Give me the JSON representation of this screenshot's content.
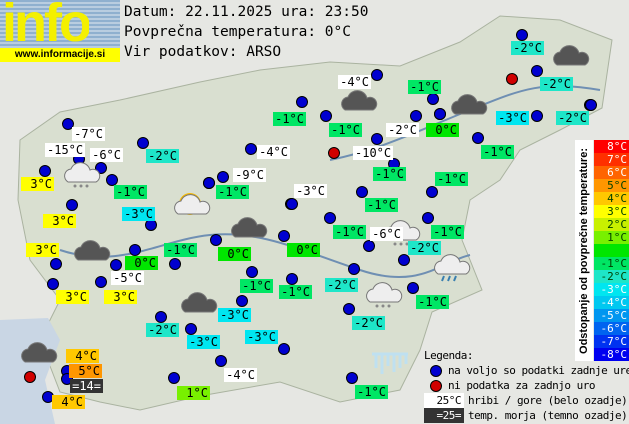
{
  "logo": {
    "word": "info",
    "url": "www.informacije.si"
  },
  "header": {
    "date_line": "Datum: 22.11.2025 ura: 23:50",
    "avg_line": "Povprečna temperatura: 0°C",
    "source_line": "Vir podatkov: ARSO"
  },
  "colors": {
    "mountain": "#ffffff",
    "sea": "#333333",
    "t8": "#ff0000",
    "t7": "#ff3000",
    "t6": "#ff6400",
    "t5": "#ff9600",
    "t4": "#ffc800",
    "t3": "#ffff00",
    "t2": "#c8f000",
    "t1": "#78f000",
    "t0": "#00e600",
    "t-1": "#00e664",
    "t-2": "#1ee6c8",
    "t-3": "#00e6f0",
    "t-4": "#00c8f0",
    "t-5": "#0096f0",
    "t-6": "#0064f0",
    "t-7": "#0032f0",
    "t-8": "#0000f0"
  },
  "stations": [
    {
      "t": "-2°C",
      "d": -2
    },
    {
      "t": "-4°C",
      "d": -4,
      "m": 1
    },
    {
      "t": "-1°C",
      "d": -1
    },
    {
      "t": "-2°C",
      "d": -2
    },
    {
      "t": "-1°C",
      "d": -1
    },
    {
      "t": "-1°C",
      "d": -1
    },
    {
      "t": "-2°C",
      "d": -2,
      "m": 1
    },
    {
      "t": "0°C",
      "d": 0
    },
    {
      "t": "-3°C",
      "d": -3
    },
    {
      "t": "-2°C",
      "d": -2
    },
    {
      "t": "-7°C",
      "d": -7,
      "m": 1
    },
    {
      "t": "-15°C",
      "d": -15,
      "m": 1
    },
    {
      "t": "-6°C",
      "d": -6,
      "m": 1
    },
    {
      "t": "-2°C",
      "d": -2
    },
    {
      "t": "-4°C",
      "d": -4,
      "m": 1
    },
    {
      "t": "-10°C",
      "d": -10,
      "m": 1
    },
    {
      "t": "-1°C",
      "d": -1
    },
    {
      "t": "3°C",
      "d": 3
    },
    {
      "t": "-9°C",
      "d": -9,
      "m": 1
    },
    {
      "t": "-1°C",
      "d": -1
    },
    {
      "t": "-1°C",
      "d": -1
    },
    {
      "t": "-1°C",
      "d": -1
    },
    {
      "t": "-1°C",
      "d": -1
    },
    {
      "t": "-3°C",
      "d": -3,
      "m": 1
    },
    {
      "t": "-3°C",
      "d": -3
    },
    {
      "t": "-1°C",
      "d": -1
    },
    {
      "t": "3°C",
      "d": 3
    },
    {
      "t": "-1°C",
      "d": -1
    },
    {
      "t": "-6°C",
      "d": -6,
      "m": 1
    },
    {
      "t": "-1°C",
      "d": -1
    },
    {
      "t": "3°C",
      "d": 3
    },
    {
      "t": "-1°C",
      "d": -1
    },
    {
      "t": "0°C",
      "d": 0
    },
    {
      "t": "0°C",
      "d": 0
    },
    {
      "t": "-2°C",
      "d": -2
    },
    {
      "t": "0°C",
      "d": 0
    },
    {
      "t": "-5°C",
      "d": -5,
      "m": 1
    },
    {
      "t": "-1°C",
      "d": -1
    },
    {
      "t": "-2°C",
      "d": -2
    },
    {
      "t": "3°C",
      "d": 3
    },
    {
      "t": "3°C",
      "d": 3
    },
    {
      "t": "-1°C",
      "d": -1
    },
    {
      "t": "-1°C",
      "d": -1
    },
    {
      "t": "-2°C",
      "d": -2
    },
    {
      "t": "-3°C",
      "d": -3
    },
    {
      "t": "-3°C",
      "d": -3
    },
    {
      "t": "-3°C",
      "d": -3
    },
    {
      "t": "-2°C",
      "d": -2
    },
    {
      "t": "4°C",
      "d": 4
    },
    {
      "t": "5°C",
      "d": 5
    },
    {
      "t": "=14=",
      "d": 0,
      "s": 1
    },
    {
      "t": "4°C",
      "d": 4
    },
    {
      "t": "1°C",
      "d": 1
    },
    {
      "t": "-4°C",
      "d": -4,
      "m": 1
    },
    {
      "t": "-1°C",
      "d": -1
    }
  ],
  "dots": {
    "available_count": 59,
    "no_data_count": 3
  },
  "weather_icons": [
    "cloudy",
    "cloudy",
    "cloudy",
    "snow",
    "partly-sunny",
    "cloudy",
    "cloudy",
    "cloudy",
    "snow",
    "snow",
    "rain",
    "cloudy",
    "frost"
  ],
  "scale": {
    "title": "Odstopanje od povprečne temperature:",
    "steps": [
      "8°C",
      "7°C",
      "6°C",
      "5°C",
      "4°C",
      "3°C",
      "2°C",
      "1°C",
      "",
      "-1°C",
      "-2°C",
      "-3°C",
      "-4°C",
      "-5°C",
      "-6°C",
      "-7°C",
      "-8°C"
    ]
  },
  "legend": {
    "title": "Legenda:",
    "available": "na voljo so podatki zadnje ure",
    "no_data": "ni podatka za zadnjo uro",
    "mountain_sample": "25°C",
    "mountain": "hribi / gore (belo ozadje)",
    "sea_sample": "=25=",
    "sea": "temp. morja (temno ozadje)"
  }
}
